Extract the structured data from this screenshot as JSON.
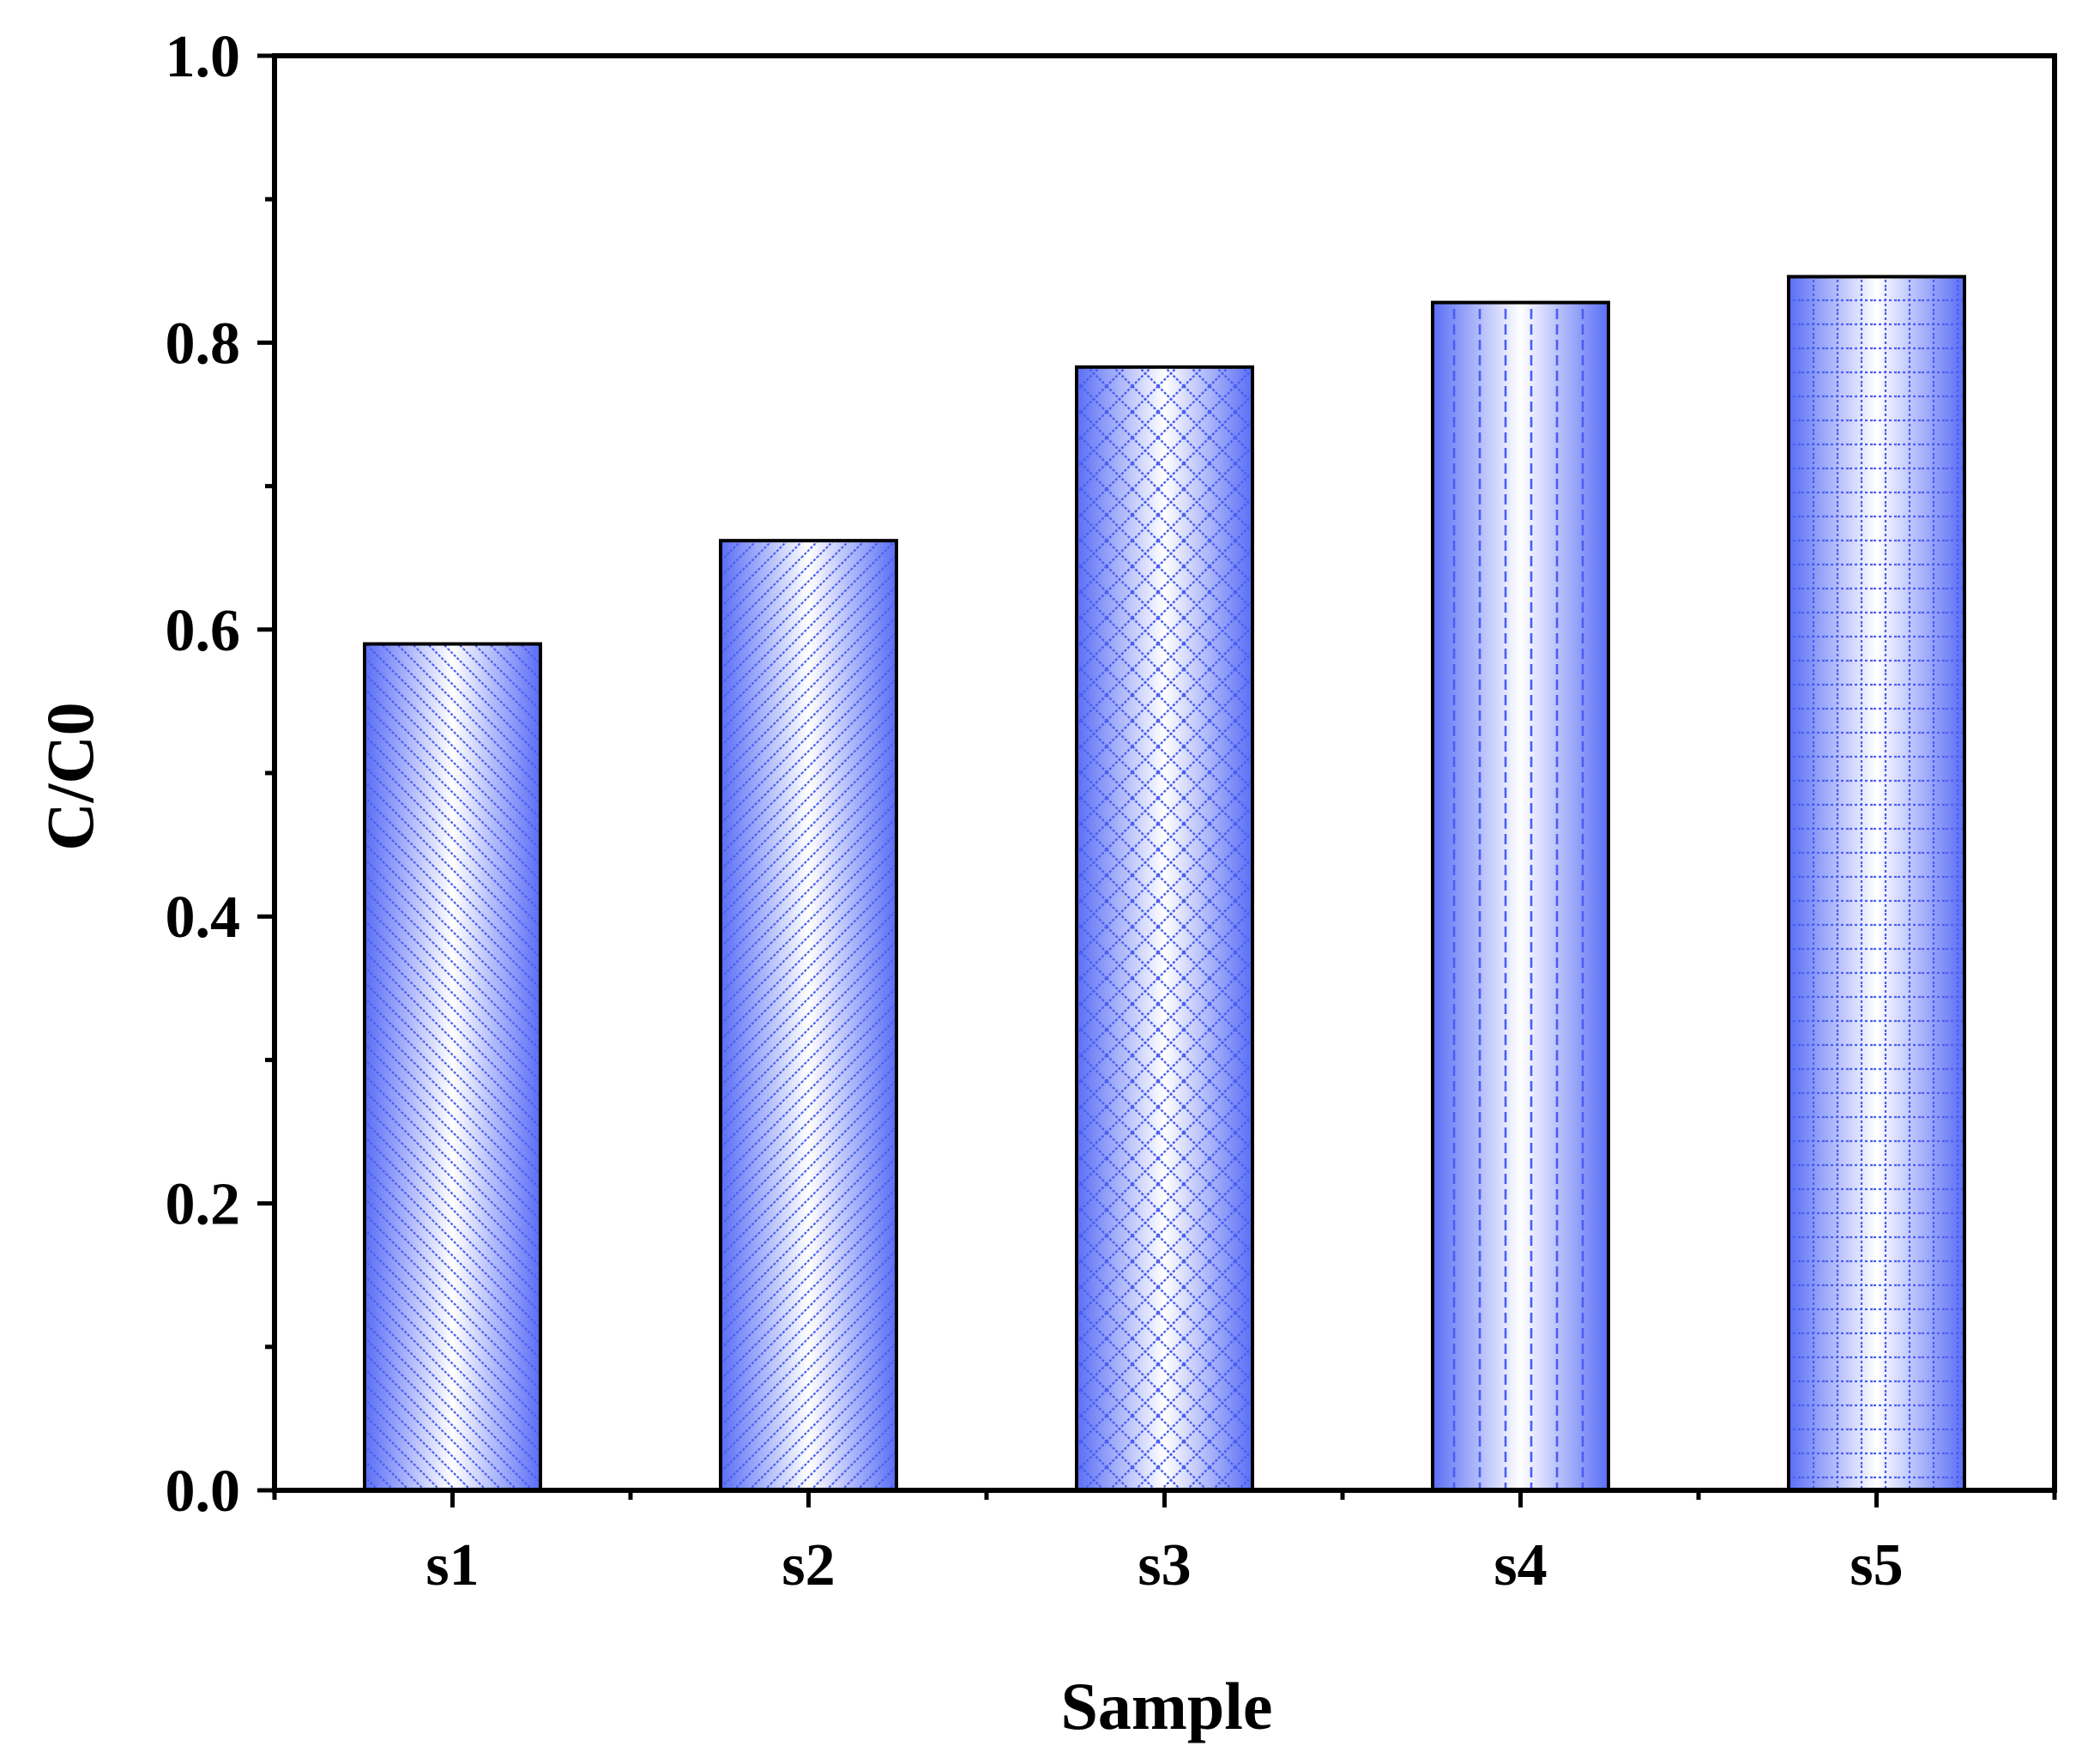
{
  "chart_data": {
    "type": "bar",
    "title": "",
    "xlabel": "Sample",
    "ylabel": "C/C0",
    "categories": [
      "s1",
      "s2",
      "s3",
      "s4",
      "s5"
    ],
    "values": [
      0.59,
      0.662,
      0.783,
      0.828,
      0.846
    ],
    "ylim": [
      0.0,
      1.0
    ],
    "yticks": [
      "0.0",
      "0.2",
      "0.4",
      "0.6",
      "0.8",
      "1.0"
    ],
    "grid": false,
    "legend": "none",
    "bar_patterns": [
      "diagonal-right",
      "diagonal-left",
      "crosshatch",
      "vertical-dashed",
      "dotted-grid"
    ],
    "colors": {
      "bar_edge": "#5a6ef5",
      "bar_center": "#ffffff",
      "pattern": "#4a5ef0",
      "axis": "#000000"
    }
  }
}
